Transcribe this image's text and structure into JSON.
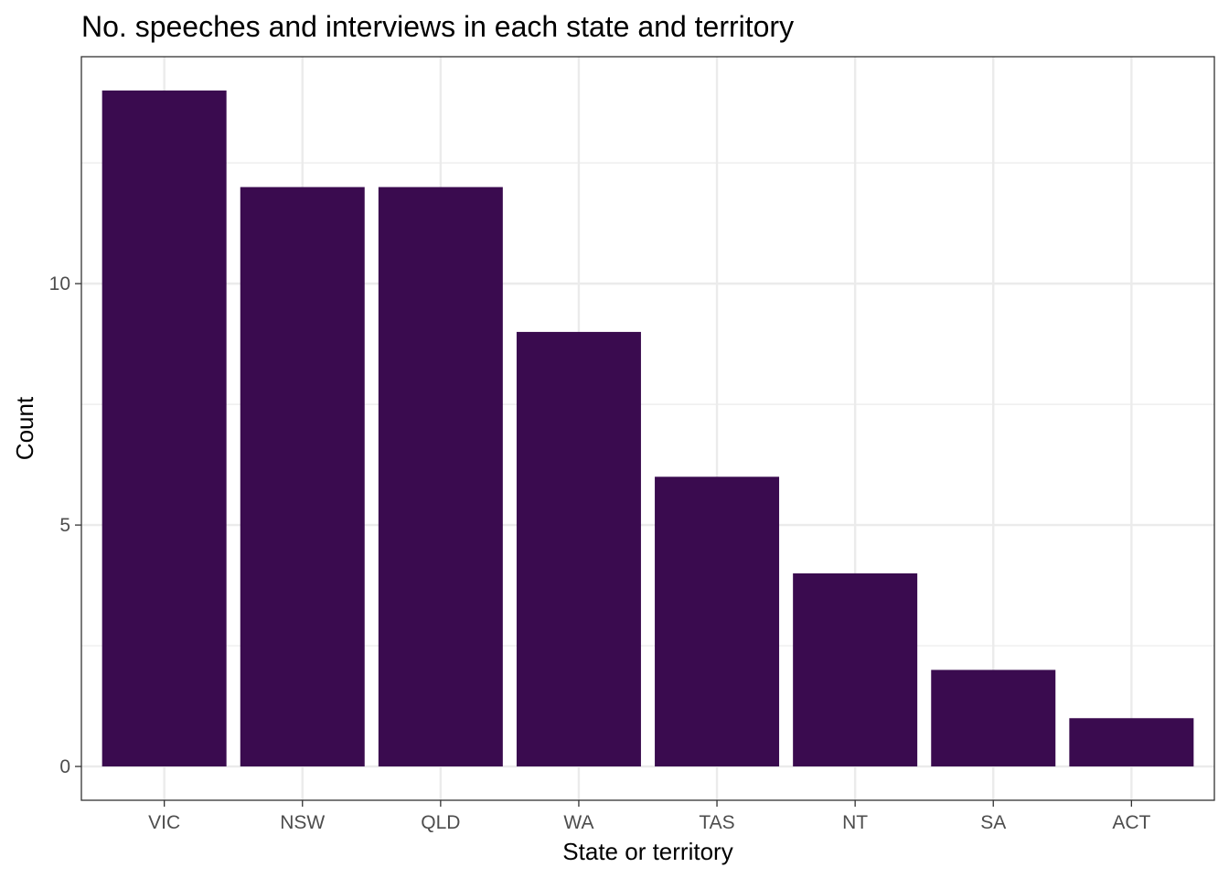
{
  "chart_data": {
    "type": "bar",
    "title": "No. speeches and interviews in each state and territory",
    "xlabel": "State or territory",
    "ylabel": "Count",
    "categories": [
      "VIC",
      "NSW",
      "QLD",
      "WA",
      "TAS",
      "NT",
      "SA",
      "ACT"
    ],
    "values": [
      14,
      12,
      12,
      9,
      6,
      4,
      2,
      1
    ],
    "ylim": [
      -0.7,
      14.7
    ],
    "yticks": [
      0,
      5,
      10
    ],
    "y_minor_ticks": [
      2.5,
      7.5,
      12.5
    ],
    "grid": true,
    "legend": "none",
    "bar_color": "#3A0B4F",
    "grid_color": "#EBEBEB",
    "panel_border_color": "#333333"
  }
}
